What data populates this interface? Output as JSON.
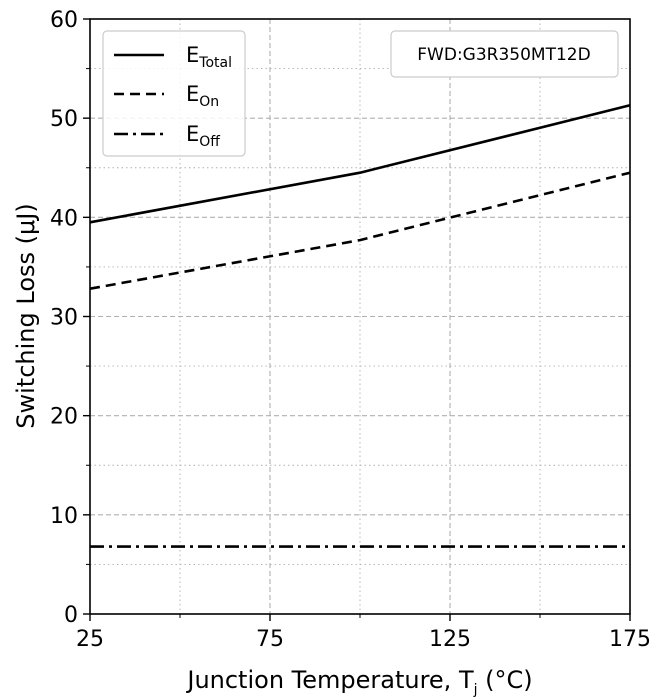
{
  "chart_data": {
    "type": "line",
    "x": [
      25,
      100,
      175
    ],
    "series": [
      {
        "name": "E_Total",
        "label_main": "E",
        "label_sub": "Total",
        "values": [
          39.5,
          44.5,
          51.3
        ],
        "dash": "solid"
      },
      {
        "name": "E_On",
        "label_main": "E",
        "label_sub": "On",
        "values": [
          32.8,
          37.7,
          44.5
        ],
        "dash": "dashed"
      },
      {
        "name": "E_Off",
        "label_main": "E",
        "label_sub": "Off",
        "values": [
          6.8,
          6.8,
          6.8
        ],
        "dash": "dashdot"
      }
    ],
    "xlabel_main": "Junction Temperature, T",
    "xlabel_sub": "j",
    "xlabel_unit": " (°C)",
    "ylabel": "Switching Loss (μJ)",
    "xlim": [
      25,
      175
    ],
    "ylim": [
      0,
      60
    ],
    "xticks": [
      25,
      75,
      125,
      175
    ],
    "yticks": [
      0,
      10,
      20,
      30,
      40,
      50,
      60
    ],
    "x_minor_ticks": [
      50,
      100,
      150
    ],
    "y_minor_ticks": [
      5,
      15,
      25,
      35,
      45,
      55
    ],
    "grid": true,
    "legend_position": "top-left",
    "annotation": "FWD:G3R350MT12D",
    "annotation_position": "top-right",
    "line_color": "#000000",
    "grid_color": "#b0b0b0"
  }
}
